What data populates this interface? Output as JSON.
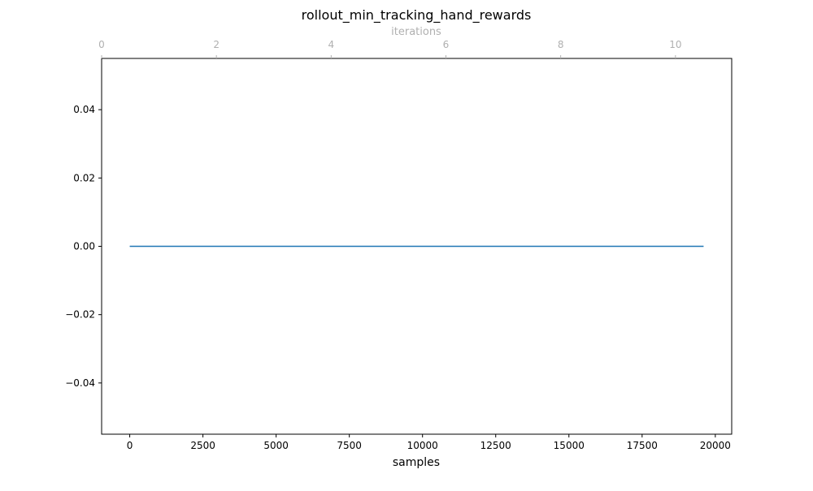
{
  "chart_data": {
    "type": "line",
    "title": "rollout_min_tracking_hand_rewards",
    "xlabel": "samples",
    "ylabel": "",
    "x_top_label": "iterations",
    "xlim": [
      -960,
      20560
    ],
    "ylim": [
      -0.055,
      0.055
    ],
    "x_ticks": [
      0,
      2500,
      5000,
      7500,
      10000,
      12500,
      15000,
      17500,
      20000
    ],
    "x_tick_labels": [
      "0",
      "2500",
      "5000",
      "7500",
      "10000",
      "12500",
      "15000",
      "17500",
      "20000"
    ],
    "y_ticks": [
      0.04,
      0.02,
      0.0,
      -0.02,
      -0.04
    ],
    "y_tick_labels": [
      "0.04",
      "0.02",
      "0.00",
      "−0.02",
      "−0.04"
    ],
    "top_xlim": [
      0,
      10.98
    ],
    "top_ticks": [
      0,
      2,
      4,
      6,
      8,
      10
    ],
    "top_tick_labels": [
      "0",
      "2",
      "4",
      "6",
      "8",
      "10"
    ],
    "grid": false,
    "series": [
      {
        "x": [
          0,
          19600
        ],
        "y": [
          0.0,
          0.0
        ]
      }
    ],
    "colors": {
      "line": "#1f77b4",
      "axis": "#000000",
      "top_axis": "#b0b0b0"
    }
  }
}
